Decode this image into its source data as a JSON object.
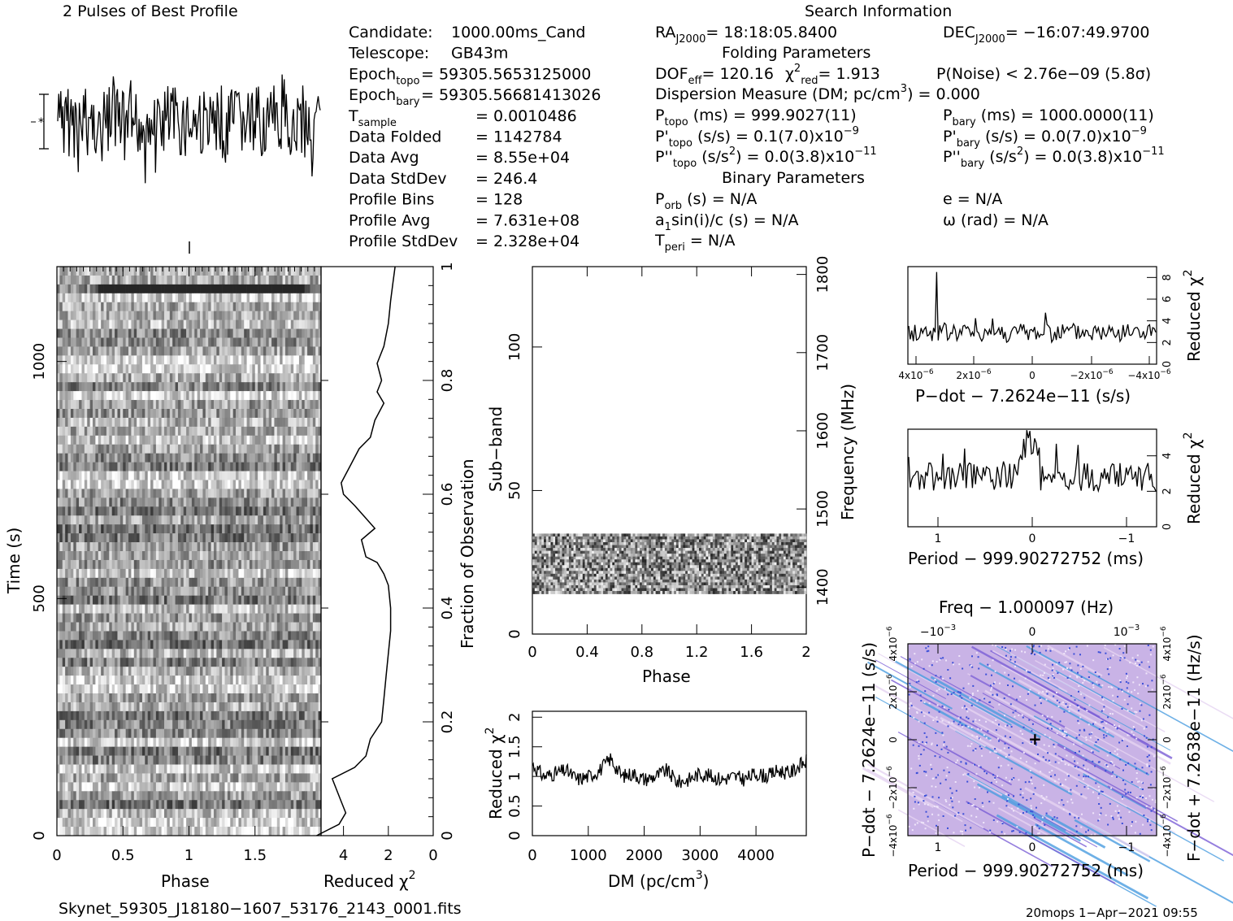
{
  "top_left_title": "2 Pulses of Best Profile",
  "search_title": "Search Information",
  "info": {
    "col1": [
      {
        "k": "Candidate:",
        "v": "1000.00ms_Cand"
      },
      {
        "k": "Telescope:",
        "v": "GB43m"
      },
      {
        "k": "Epoch",
        "sub": "topo",
        "v": "= 59305.5653125000"
      },
      {
        "k": "Epoch",
        "sub": "bary",
        "v": "= 59305.56681413026"
      },
      {
        "k": "T",
        "sub": "sample",
        "v": "=     0.0010486"
      },
      {
        "k": "Data Folded",
        "v": "=     1142784"
      },
      {
        "k": "Data Avg",
        "v": "=     8.55e+04"
      },
      {
        "k": "Data StdDev",
        "v": "=     246.4"
      },
      {
        "k": "Profile Bins",
        "v": "=     128"
      },
      {
        "k": "Profile Avg",
        "v": "=     7.631e+08"
      },
      {
        "k": "Profile StdDev",
        "v": "=     2.328e+04"
      }
    ],
    "ra": {
      "k": "RA",
      "sub": "J2000",
      "v": "= 18:18:05.8400"
    },
    "dec": {
      "k": "DEC",
      "sub": "J2000",
      "v": "= −16:07:49.9700"
    },
    "folding_title": "Folding Parameters",
    "dof": "DOF",
    "dof_sub": "eff",
    "dof_val": "= 120.16",
    "chi_lbl": "χ",
    "chi_sup": "2",
    "chi_sub": "red",
    "chi_val": "= 1.913",
    "pnoise": "P(Noise) < 2.76e−09   (5.8σ)",
    "dm_line": "Dispersion Measure (DM; pc/cm",
    "dm_sup": "3",
    "dm_val": ") = 0.000",
    "ptopo": {
      "k": "P",
      "sub": "topo",
      "v": " (ms) =   999.9027(11)"
    },
    "pbary": {
      "k": "P",
      "sub": "bary",
      "v": " (ms) =   1000.0000(11)"
    },
    "pdtopo": {
      "k": "P'",
      "sub": "topo",
      "v": " (s/s) =  0.1(7.0)x10",
      "sup": "−9"
    },
    "pdbary": {
      "k": "P'",
      "sub": "bary",
      "v": " (s/s) = 0.0(7.0)x10",
      "sup": "−9"
    },
    "pddtopo": {
      "k": "P''",
      "sub": "topo",
      "v": " (s/s",
      "sup2": "2",
      "v2": ") = 0.0(3.8)x10",
      "sup": "−11"
    },
    "pddbary": {
      "k": "P''",
      "sub": "bary",
      "v": " (s/s",
      "sup2": "2",
      "v2": ") = 0.0(3.8)x10",
      "sup": "−11"
    },
    "binary_title": "Binary Parameters",
    "porb": {
      "k": "P",
      "sub": "orb",
      "v": " (s) = N/A"
    },
    "a1": {
      "k": "a",
      "sub": "1",
      "v": "sin(i)/c (s) = N/A"
    },
    "tperi": {
      "k": "T",
      "sub": "peri",
      "v": " = N/A"
    },
    "ecc": "e = N/A",
    "omega": "ω (rad) = N/A"
  },
  "footer_file": "Skynet_59305_J18180−1607_53176_2143_0001.fits",
  "footer_stamp": "20mops   1−Apr−2021 09:55",
  "chart_data": [
    {
      "type": "line",
      "name": "profile",
      "title": "2 Pulses of Best Profile",
      "x_range": [
        0,
        2
      ],
      "note": "noisy profile, two rotations"
    },
    {
      "type": "heatmap",
      "name": "time-phase",
      "xlabel": "Phase",
      "ylabel": "Time (s)",
      "x_ticks": [
        "0",
        "0.5",
        "1",
        "1.5"
      ],
      "y_ticks": [
        "0",
        "500",
        "1000"
      ],
      "xlim": [
        0,
        2
      ],
      "ylim": [
        0,
        1200
      ]
    },
    {
      "type": "line",
      "name": "reduced-chi2-vs-fraction",
      "xlabel": "Reduced χ",
      "ylabel": "Fraction of Observation",
      "x_ticks": [
        "4",
        "2",
        "0"
      ],
      "y_ticks": [
        "0",
        "0.2",
        "0.4",
        "0.6",
        "0.8",
        "1"
      ],
      "xlim": [
        5,
        0
      ],
      "ylim": [
        0,
        1
      ],
      "x": [
        5.2,
        4.2,
        3.9,
        4.1,
        4.3,
        4.5,
        3.5,
        3.0,
        2.8,
        2.3,
        2.2,
        2.1,
        2.0,
        1.9,
        1.9,
        2.0,
        2.2,
        2.5,
        3.0,
        3.2,
        2.6,
        3.5,
        4.0,
        4.1,
        3.7,
        3.3,
        2.8,
        2.6,
        2.2,
        2.5,
        2.3,
        2.5,
        2.2,
        2.0,
        1.9,
        1.8,
        1.7
      ],
      "y": [
        0.0,
        0.02,
        0.04,
        0.06,
        0.08,
        0.1,
        0.12,
        0.14,
        0.17,
        0.2,
        0.24,
        0.28,
        0.32,
        0.36,
        0.4,
        0.44,
        0.46,
        0.48,
        0.49,
        0.52,
        0.54,
        0.58,
        0.6,
        0.62,
        0.65,
        0.68,
        0.7,
        0.73,
        0.76,
        0.78,
        0.8,
        0.83,
        0.86,
        0.9,
        0.94,
        0.97,
        1.0
      ]
    },
    {
      "type": "heatmap",
      "name": "subband-phase",
      "xlabel": "Phase",
      "ylabel": "Sub−band",
      "ylabel2": "Frequency (MHz)",
      "x_ticks": [
        "0",
        "0.4",
        "0.8",
        "1.2",
        "1.6",
        "2"
      ],
      "y_ticks": [
        "0",
        "50",
        "100"
      ],
      "y2_ticks": [
        "1400",
        "1500",
        "1600",
        "1700",
        "1800"
      ],
      "xlim": [
        0,
        2
      ],
      "ylim": [
        0,
        128
      ],
      "band": [
        14,
        35
      ]
    },
    {
      "type": "line",
      "name": "reduced-chi2-vs-dm",
      "xlabel": "DM (pc/cm",
      "xlabel_sup": "3",
      "xlabel_end": ")",
      "ylabel": "Reduced χ",
      "ylabel_sup": "2",
      "x_ticks": [
        "0",
        "1000",
        "2000",
        "3000",
        "4000"
      ],
      "y_ticks": [
        "0",
        "0.5",
        "1",
        "1.5",
        "2"
      ],
      "xlim": [
        0,
        4900
      ],
      "ylim": [
        0,
        2.1
      ],
      "x": [
        0,
        200,
        400,
        600,
        800,
        1000,
        1200,
        1400,
        1600,
        1800,
        2000,
        2200,
        2400,
        2600,
        2800,
        3000,
        3200,
        3400,
        3600,
        3800,
        4000,
        4200,
        4400,
        4600,
        4800,
        4900
      ],
      "y": [
        1.2,
        1.0,
        1.05,
        1.1,
        0.95,
        1.0,
        1.1,
        1.3,
        1.0,
        1.05,
        0.95,
        1.0,
        1.1,
        0.9,
        0.95,
        1.05,
        1.0,
        0.95,
        1.0,
        0.95,
        1.05,
        1.0,
        1.1,
        1.05,
        1.2,
        1.25
      ]
    },
    {
      "type": "line",
      "name": "reduced-chi2-vs-pdot",
      "xlabel": "P−dot − 7.2624e−11 (s/s)",
      "ylabel": "Reduced χ",
      "ylabel_sup": "2",
      "x_ticks": [
        "4x10",
        "2x10",
        "0",
        "−2x10",
        "−4x10"
      ],
      "x_tick_sup": "−6",
      "y_ticks": [
        "0",
        "2",
        "4",
        "6",
        "8"
      ],
      "ylim": [
        0,
        9
      ]
    },
    {
      "type": "line",
      "name": "reduced-chi2-vs-period",
      "xlabel": "Period − 999.90272752 (ms)",
      "ylabel": "Reduced χ",
      "ylabel_sup": "2",
      "x_ticks": [
        "1",
        "0",
        "−1"
      ],
      "y_ticks": [
        "0",
        "2",
        "4"
      ],
      "ylim": [
        0,
        5.5
      ]
    },
    {
      "type": "heatmap",
      "name": "period-pdot-plane",
      "title": "Freq − 1.000097 (Hz)",
      "xlabel": "Period − 999.90272752 (ms)",
      "ylabel": "P−dot − 7.2624e−11 (s/s)",
      "ylabel2": "F−dot + 7.2638e−11 (Hz/s)",
      "x_ticks": [
        "1",
        "0",
        "−1"
      ],
      "top_ticks": [
        "−10",
        "0",
        "10"
      ],
      "top_tick_sup": "−3",
      "y_ticks": [
        "−4x10",
        "−2x10",
        "0",
        "2x10",
        "4x10"
      ],
      "y_tick_sup": "−6"
    }
  ]
}
